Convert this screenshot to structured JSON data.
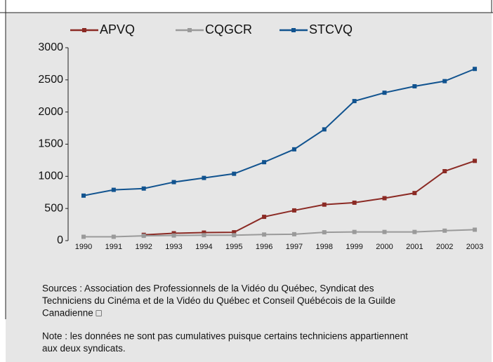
{
  "chart_data": {
    "type": "line",
    "categories": [
      "1990",
      "1991",
      "1992",
      "1993",
      "1994",
      "1995",
      "1996",
      "1997",
      "1998",
      "1999",
      "2000",
      "2001",
      "2002",
      "2003"
    ],
    "series": [
      {
        "name": "APVQ",
        "color": "#8b2a24",
        "values": [
          null,
          null,
          90,
          115,
          125,
          130,
          370,
          470,
          560,
          590,
          660,
          740,
          1080,
          1240
        ]
      },
      {
        "name": "CQGCR",
        "color": "#9a9a9a",
        "values": [
          60,
          60,
          75,
          80,
          85,
          85,
          95,
          100,
          130,
          135,
          135,
          135,
          155,
          170
        ]
      },
      {
        "name": "STCVQ",
        "color": "#11538f",
        "values": [
          700,
          790,
          810,
          910,
          975,
          1040,
          1220,
          1420,
          1730,
          2170,
          2300,
          2400,
          2480,
          2670
        ]
      }
    ],
    "ylim": [
      0,
      3000
    ],
    "yticks": [
      0,
      500,
      1000,
      1500,
      2000,
      2500,
      3000
    ],
    "grid": false,
    "legend": "top"
  },
  "notes": {
    "sources": [
      "Sources :  Association des Professionnels de la Vidéo du Québec,  Syndicat des",
      "Techniciens du Cinéma et de la Vidéo du Québec et Conseil Québécois de la Guilde",
      "Canadienne □"
    ],
    "note": [
      "Note :  les données ne sont pas cumulatives puisque certains techniciens appartiennent",
      "aux deux syndicats."
    ]
  }
}
